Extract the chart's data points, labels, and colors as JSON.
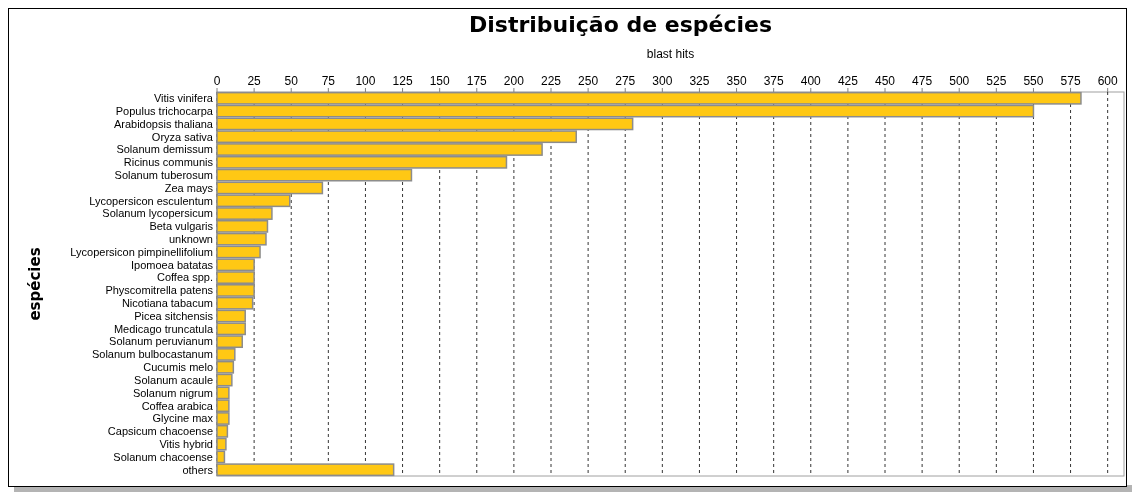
{
  "chart_data": {
    "type": "bar",
    "orientation": "horizontal",
    "title": "Distribuição de espécies",
    "xlabel": "blast hits",
    "ylabel": "espécies",
    "categories": [
      "Vitis vinifera",
      "Populus trichocarpa",
      "Arabidopsis thaliana",
      "Oryza sativa",
      "Solanum demissum",
      "Ricinus communis",
      "Solanum tuberosum",
      "Zea mays",
      "Lycopersicon esculentum",
      "Solanum lycopersicum",
      "Beta vulgaris",
      "unknown",
      "Lycopersicon pimpinellifolium",
      "Ipomoea batatas",
      "Coffea spp.",
      "Physcomitrella patens",
      "Nicotiana tabacum",
      "Picea sitchensis",
      "Medicago truncatula",
      "Solanum peruvianum",
      "Solanum bulbocastanum",
      "Cucumis melo",
      "Solanum acaule",
      "Solanum nigrum",
      "Coffea arabica",
      "Glycine max",
      "Capsicum chacoense",
      "Vitis hybrid",
      "Solanum chacoense",
      "others"
    ],
    "values": [
      582,
      550,
      280,
      242,
      219,
      195,
      131,
      71,
      49,
      37,
      34,
      33,
      29,
      25,
      25,
      25,
      24,
      19,
      19,
      17,
      12,
      11,
      10,
      8,
      8,
      8,
      7,
      6,
      5,
      119
    ],
    "color": "#ffc814",
    "xlim": [
      0,
      611
    ],
    "xticks": [
      0,
      25,
      50,
      75,
      100,
      125,
      150,
      175,
      200,
      225,
      250,
      275,
      300,
      325,
      350,
      375,
      400,
      425,
      450,
      475,
      500,
      525,
      550,
      575,
      600
    ],
    "grid": "x"
  }
}
